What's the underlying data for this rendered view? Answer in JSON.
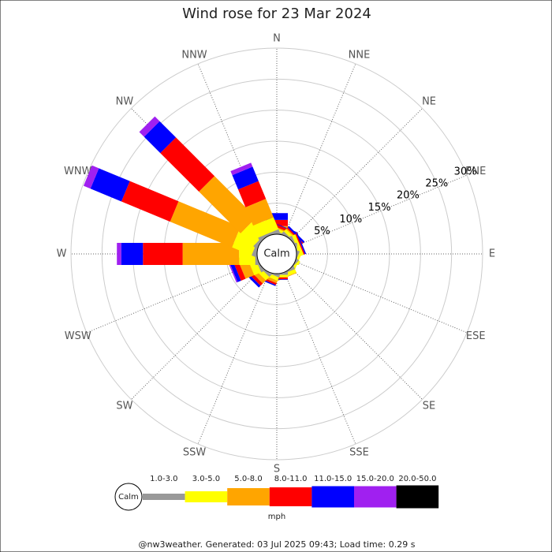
{
  "chart_data": {
    "type": "wind_rose",
    "title": "Wind rose for 23 Mar 2024",
    "directions": [
      "N",
      "NNE",
      "NE",
      "ENE",
      "E",
      "ESE",
      "SE",
      "SSE",
      "S",
      "SSW",
      "SW",
      "WSW",
      "W",
      "WNW",
      "NW",
      "NNW"
    ],
    "calm_label": "Calm",
    "unit": "mph",
    "rlim": [
      0,
      30
    ],
    "rticks": [
      {
        "value": 5,
        "label": "5%"
      },
      {
        "value": 10,
        "label": "10%"
      },
      {
        "value": 15,
        "label": "15%"
      },
      {
        "value": 20,
        "label": "20%"
      },
      {
        "value": 25,
        "label": "25%"
      },
      {
        "value": 30,
        "label": "30%"
      }
    ],
    "series": [
      {
        "name": "1.0-3.0",
        "color": "#999999",
        "values": [
          0.3,
          0.2,
          0.2,
          0.2,
          0.1,
          0.1,
          0.1,
          0.2,
          0.2,
          0.2,
          0.3,
          0.3,
          0.3,
          0.5,
          0.4,
          0.4
        ]
      },
      {
        "name": "3.0-5.0",
        "color": "#ffff00",
        "values": [
          0.6,
          0.4,
          0.5,
          0.6,
          0.3,
          0.4,
          0.3,
          0.6,
          0.4,
          0.6,
          0.8,
          1.2,
          2.6,
          3.4,
          2.9,
          2.1
        ]
      },
      {
        "name": "5.0-8.0",
        "color": "#ffa500",
        "values": [
          0.4,
          0.2,
          0.2,
          0,
          0,
          0,
          0,
          0.1,
          0,
          0.4,
          0.7,
          1.5,
          9.1,
          10.8,
          9.5,
          3.2
        ]
      },
      {
        "name": "8.0-11.0",
        "color": "#ff0000",
        "values": [
          1.0,
          0.4,
          0.2,
          0.2,
          0,
          0,
          0,
          0,
          0.3,
          0.3,
          0.5,
          0.8,
          6.4,
          8.5,
          8.8,
          3.1
        ]
      },
      {
        "name": "11.0-15.0",
        "color": "#0000ff",
        "values": [
          1.1,
          0.1,
          0.3,
          0.2,
          0,
          0,
          0,
          0,
          0.1,
          0.2,
          0.4,
          0.6,
          3.5,
          5.4,
          3.7,
          2.5
        ]
      },
      {
        "name": "15.0-20.0",
        "color": "#a020f0",
        "values": [
          0,
          0,
          0,
          0,
          0,
          0,
          0,
          0,
          0,
          0,
          0,
          0.2,
          0.7,
          1.2,
          1.1,
          0.7
        ]
      },
      {
        "name": "20.0-50.0",
        "color": "#000000",
        "values": [
          0,
          0,
          0,
          0,
          0,
          0,
          0,
          0,
          0,
          0,
          0,
          0,
          0,
          0,
          0,
          0
        ]
      }
    ],
    "footer": "@nw3weather. Generated: 03 Jul 2025 09:43; Load time: 0.29 s"
  }
}
